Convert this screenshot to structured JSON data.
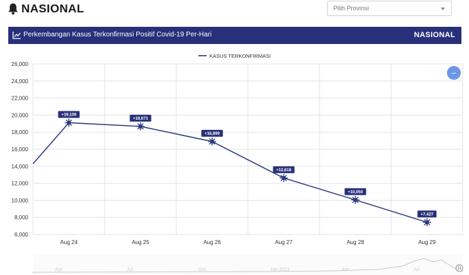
{
  "header": {
    "title": "NASIONAL",
    "province_select": {
      "value": "Pilih Provinsi"
    }
  },
  "banner": {
    "title": "Perkembangan Kasus Terkonfirmasi Positif Covid-19 Per-Hari",
    "region": "NASIONAL"
  },
  "zoom_button": {
    "symbol": "–"
  },
  "colors": {
    "banner": "#28307a",
    "series": "#2c3a80",
    "zoom_button": "#6d97e6"
  },
  "chart_data": {
    "type": "line",
    "x": [
      "Aug 24",
      "Aug 25",
      "Aug 26",
      "Aug 27",
      "Aug 28",
      "Aug 29"
    ],
    "series": [
      {
        "name": "KASUS TERKONFIRMASI",
        "values": [
          19106,
          18671,
          16899,
          12618,
          10050,
          7427
        ],
        "labels": [
          "+19,106",
          "+18,671",
          "+16,899",
          "+12,618",
          "+10,050",
          "+7,427"
        ],
        "incoming_value": 14300
      }
    ],
    "yticks": [
      "26,000",
      "24,000",
      "22,000",
      "20,000",
      "18,000",
      "16,000",
      "14,000",
      "12,000",
      "10,000",
      "8,000",
      "6,000"
    ],
    "ylim": [
      6000,
      26000
    ],
    "grid": true,
    "legend": "top-center",
    "navigator_labels": [
      "Apr",
      "Jul",
      "Oct",
      "Jan 2021",
      "Apr",
      "Jul"
    ]
  }
}
